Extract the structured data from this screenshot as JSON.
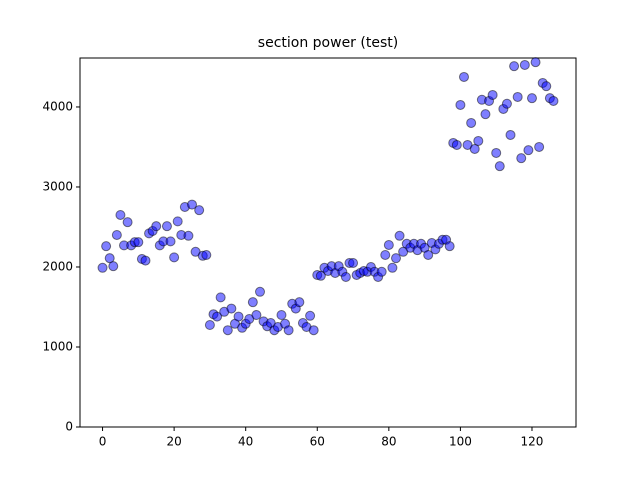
{
  "chart_data": {
    "type": "scatter",
    "title": "section power (test)",
    "x": [
      0,
      1,
      2,
      3,
      4,
      5,
      6,
      7,
      8,
      9,
      10,
      11,
      12,
      13,
      14,
      15,
      16,
      17,
      18,
      19,
      20,
      21,
      22,
      23,
      24,
      25,
      26,
      27,
      28,
      29,
      30,
      31,
      32,
      33,
      34,
      35,
      36,
      37,
      38,
      39,
      40,
      41,
      42,
      43,
      44,
      45,
      46,
      47,
      48,
      49,
      50,
      51,
      52,
      53,
      54,
      55,
      56,
      57,
      58,
      59,
      60,
      61,
      62,
      63,
      64,
      65,
      66,
      67,
      68,
      69,
      70,
      71,
      72,
      73,
      74,
      75,
      76,
      77,
      78,
      79,
      80,
      81,
      82,
      83,
      84,
      85,
      86,
      87,
      88,
      89,
      90,
      91,
      92,
      93,
      94,
      95,
      96,
      97,
      98,
      99,
      100,
      101,
      102,
      103,
      104,
      105,
      106,
      107,
      108,
      109,
      110,
      111,
      112,
      113,
      114,
      115,
      116,
      117,
      118,
      119,
      120,
      121,
      122,
      123,
      124,
      125,
      126
    ],
    "values": [
      1990,
      2260,
      2110,
      2010,
      2400,
      2650,
      2270,
      2560,
      2270,
      2310,
      2310,
      2100,
      2080,
      2420,
      2450,
      2510,
      2270,
      2320,
      2510,
      2320,
      2120,
      2570,
      2400,
      2750,
      2390,
      2780,
      2190,
      2710,
      2140,
      2150,
      1275,
      1410,
      1380,
      1620,
      1440,
      1210,
      1480,
      1290,
      1380,
      1240,
      1290,
      1350,
      1560,
      1400,
      1690,
      1320,
      1260,
      1300,
      1210,
      1250,
      1400,
      1290,
      1210,
      1540,
      1480,
      1560,
      1300,
      1250,
      1390,
      1210,
      1900,
      1890,
      1990,
      1950,
      2010,
      1925,
      2010,
      1940,
      1875,
      2050,
      2050,
      1900,
      1925,
      1950,
      1940,
      2000,
      1940,
      1875,
      1940,
      2150,
      2275,
      1990,
      2110,
      2390,
      2190,
      2290,
      2240,
      2290,
      2210,
      2290,
      2240,
      2150,
      2300,
      2220,
      2290,
      2340,
      2340,
      2260,
      3550,
      3525,
      4025,
      4375,
      3525,
      3800,
      3475,
      3575,
      4090,
      3910,
      4075,
      4150,
      3425,
      3260,
      3975,
      4040,
      3650,
      4510,
      4125,
      3360,
      4525,
      3460,
      4110,
      4560,
      3500,
      4300,
      4260,
      4110,
      4075
    ],
    "color": "#0000ff",
    "xlim": [
      -6.3,
      132.3
    ],
    "ylim": [
      0,
      4612
    ],
    "xticks": [
      0,
      20,
      40,
      60,
      80,
      100,
      120
    ],
    "yticks": [
      0,
      1000,
      2000,
      3000,
      4000
    ]
  }
}
